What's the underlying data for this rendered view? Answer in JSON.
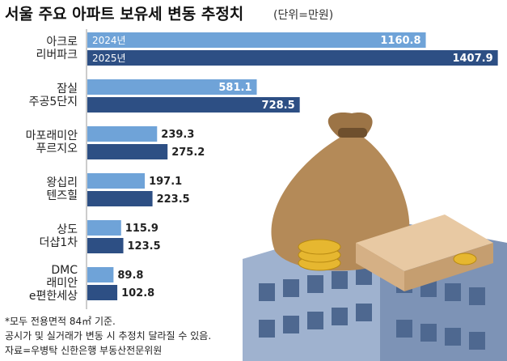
{
  "chart_data": {
    "type": "hbar",
    "title": "서울 주요 아파트 보유세 변동 추정치",
    "subtitle": "(단위=만원)",
    "categories": [
      "아크로\n리버파크",
      "잠실\n주공5단지",
      "마포래미안\n푸르지오",
      "왕십리\n텐즈힐",
      "상도\n더샵1차",
      "DMC\n래미안\ne편한세상"
    ],
    "series": [
      {
        "name": "2024년",
        "color": "#6fa3d8",
        "values": [
          1160.8,
          581.1,
          239.3,
          197.1,
          115.9,
          89.8
        ]
      },
      {
        "name": "2025년",
        "color": "#2d4f84",
        "values": [
          1407.9,
          728.5,
          275.2,
          223.5,
          123.5,
          102.8
        ]
      }
    ],
    "xlim": [
      0,
      1420
    ],
    "notes": [
      "*모두 전용면적 84㎡ 기준.",
      "공시가 및 실거래가 변동 시 추정치 달라질 수 있음.",
      "자료=우병탁 신한은행 부동산전문위원"
    ]
  }
}
